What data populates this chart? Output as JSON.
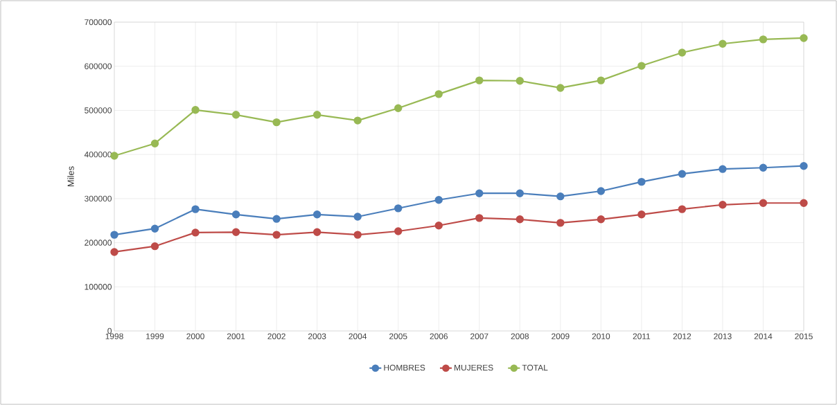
{
  "chart_data": {
    "type": "line",
    "ylabel": "Miles",
    "categories": [
      "1998",
      "1999",
      "2000",
      "2001",
      "2002",
      "2003",
      "2004",
      "2005",
      "2006",
      "2007",
      "2008",
      "2009",
      "2010",
      "2011",
      "2012",
      "2013",
      "2014",
      "2015"
    ],
    "series": [
      {
        "name": "HOMBRES",
        "color": "#4a7ebb",
        "values": [
          218000,
          232000,
          276000,
          264000,
          254000,
          264000,
          259000,
          278000,
          297000,
          312000,
          312000,
          305000,
          317000,
          338000,
          356000,
          367000,
          370000,
          374000
        ]
      },
      {
        "name": "MUJERES",
        "color": "#be4b48",
        "values": [
          179000,
          192000,
          223000,
          224000,
          218000,
          224000,
          218000,
          226000,
          239000,
          256000,
          253000,
          245000,
          253000,
          264000,
          276000,
          286000,
          290000,
          290000
        ]
      },
      {
        "name": "TOTAL",
        "color": "#98b954",
        "values": [
          397000,
          425000,
          501000,
          490000,
          473000,
          490000,
          477000,
          505000,
          537000,
          568000,
          567000,
          551000,
          568000,
          601000,
          631000,
          651000,
          661000,
          664000
        ]
      }
    ],
    "ylim": [
      0,
      700000
    ],
    "yticks": [
      0,
      100000,
      200000,
      300000,
      400000,
      500000,
      600000,
      700000
    ],
    "grid": true,
    "legend": "bottom",
    "marker": "circle",
    "line_style": "solid"
  }
}
